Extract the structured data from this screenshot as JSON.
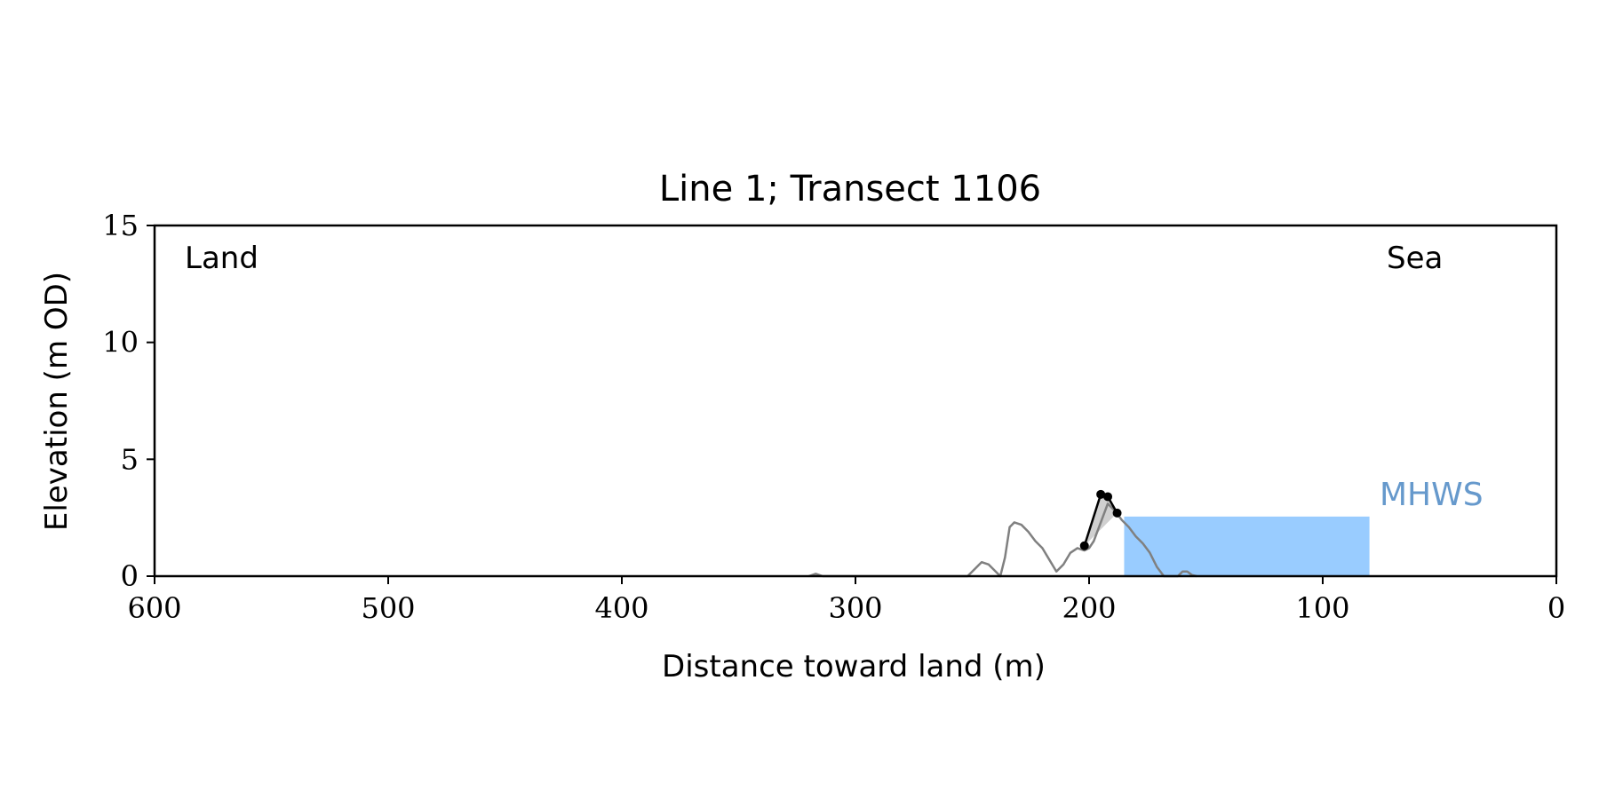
{
  "chart_data": {
    "type": "line",
    "title": "Line 1; Transect 1106",
    "xlabel": "Distance toward land (m)",
    "ylabel": "Elevation (m OD)",
    "xlim": [
      600,
      0
    ],
    "ylim": [
      0,
      15
    ],
    "x_ticks": [
      600,
      500,
      400,
      300,
      200,
      100,
      0
    ],
    "y_ticks": [
      0,
      5,
      10,
      15
    ],
    "grid": false,
    "annotations": {
      "land": "Land",
      "sea": "Sea",
      "mhws": "MHWS"
    },
    "mhws": {
      "elevation": 2.55,
      "x_start": 185,
      "x_end": 80
    },
    "profile": {
      "color": "#808080",
      "x": [
        320,
        317,
        314,
        252,
        249,
        246,
        243,
        240,
        238,
        236,
        234,
        232,
        229,
        226,
        223,
        220,
        217,
        214,
        211,
        208,
        205,
        202,
        200,
        198,
        195,
        192,
        189,
        186,
        183,
        180,
        177,
        174,
        171,
        168,
        165,
        162,
        160,
        158,
        156,
        154
      ],
      "y": [
        0,
        0.1,
        0,
        0,
        0.3,
        0.6,
        0.5,
        0.2,
        0.0,
        0.8,
        2.1,
        2.3,
        2.2,
        1.9,
        1.5,
        1.2,
        0.7,
        0.2,
        0.5,
        1.0,
        1.2,
        1.1,
        1.2,
        1.5,
        2.3,
        3.1,
        2.8,
        2.4,
        2.1,
        1.7,
        1.4,
        1.0,
        0.4,
        0.0,
        0.0,
        0.0,
        0.2,
        0.2,
        0.05,
        0
      ]
    },
    "crest": {
      "color": "#000000",
      "x": [
        202,
        195,
        192,
        188
      ],
      "y": [
        1.3,
        3.5,
        3.4,
        2.7
      ]
    }
  }
}
